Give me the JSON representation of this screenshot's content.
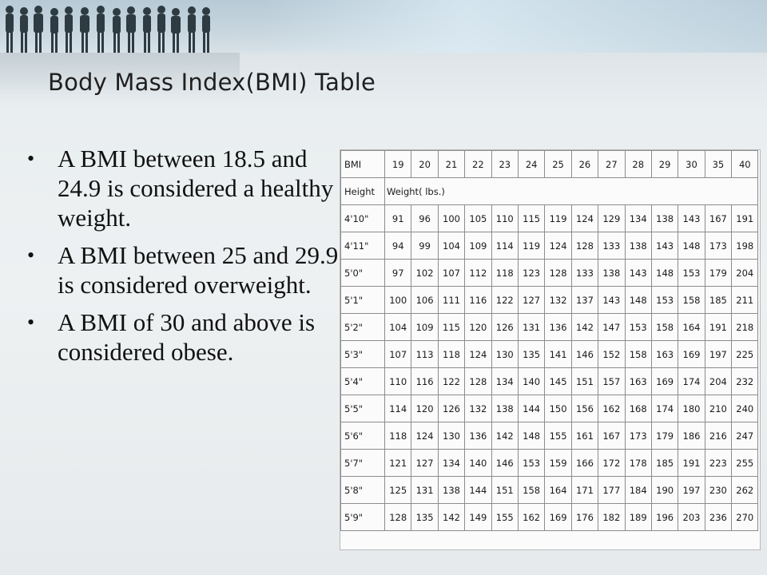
{
  "slide": {
    "title": "Body Mass Index(BMI) Table",
    "bullets": [
      "A BMI between 18.5 and 24.9 is considered a healthy weight.",
      "A BMI between 25 and 29.9 is considered overweight.",
      "A BMI of 30 and above is considered obese."
    ]
  },
  "table": {
    "corner_label": "BMI",
    "bmi_values": [
      "19",
      "20",
      "21",
      "22",
      "23",
      "24",
      "25",
      "26",
      "27",
      "28",
      "29",
      "30",
      "35",
      "40"
    ],
    "height_label": "Height",
    "weight_label": "Weight( lbs.)",
    "rows": [
      {
        "height": "4'10\"",
        "weights": [
          "91",
          "96",
          "100",
          "105",
          "110",
          "115",
          "119",
          "124",
          "129",
          "134",
          "138",
          "143",
          "167",
          "191"
        ]
      },
      {
        "height": "4'11\"",
        "weights": [
          "94",
          "99",
          "104",
          "109",
          "114",
          "119",
          "124",
          "128",
          "133",
          "138",
          "143",
          "148",
          "173",
          "198"
        ]
      },
      {
        "height": "5'0\"",
        "weights": [
          "97",
          "102",
          "107",
          "112",
          "118",
          "123",
          "128",
          "133",
          "138",
          "143",
          "148",
          "153",
          "179",
          "204"
        ]
      },
      {
        "height": "5'1\"",
        "weights": [
          "100",
          "106",
          "111",
          "116",
          "122",
          "127",
          "132",
          "137",
          "143",
          "148",
          "153",
          "158",
          "185",
          "211"
        ]
      },
      {
        "height": "5'2\"",
        "weights": [
          "104",
          "109",
          "115",
          "120",
          "126",
          "131",
          "136",
          "142",
          "147",
          "153",
          "158",
          "164",
          "191",
          "218"
        ]
      },
      {
        "height": "5'3\"",
        "weights": [
          "107",
          "113",
          "118",
          "124",
          "130",
          "135",
          "141",
          "146",
          "152",
          "158",
          "163",
          "169",
          "197",
          "225"
        ]
      },
      {
        "height": "5'4\"",
        "weights": [
          "110",
          "116",
          "122",
          "128",
          "134",
          "140",
          "145",
          "151",
          "157",
          "163",
          "169",
          "174",
          "204",
          "232"
        ]
      },
      {
        "height": "5'5\"",
        "weights": [
          "114",
          "120",
          "126",
          "132",
          "138",
          "144",
          "150",
          "156",
          "162",
          "168",
          "174",
          "180",
          "210",
          "240"
        ]
      },
      {
        "height": "5'6\"",
        "weights": [
          "118",
          "124",
          "130",
          "136",
          "142",
          "148",
          "155",
          "161",
          "167",
          "173",
          "179",
          "186",
          "216",
          "247"
        ]
      },
      {
        "height": "5'7\"",
        "weights": [
          "121",
          "127",
          "134",
          "140",
          "146",
          "153",
          "159",
          "166",
          "172",
          "178",
          "185",
          "191",
          "223",
          "255"
        ]
      },
      {
        "height": "5'8\"",
        "weights": [
          "125",
          "131",
          "138",
          "144",
          "151",
          "158",
          "164",
          "171",
          "177",
          "184",
          "190",
          "197",
          "230",
          "262"
        ]
      },
      {
        "height": "5'9\"",
        "weights": [
          "128",
          "135",
          "142",
          "149",
          "155",
          "162",
          "169",
          "176",
          "182",
          "189",
          "196",
          "203",
          "236",
          "270"
        ]
      }
    ]
  }
}
